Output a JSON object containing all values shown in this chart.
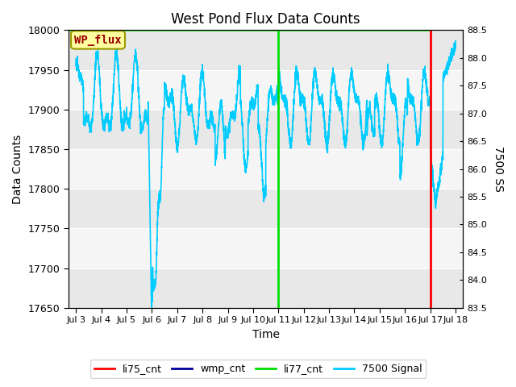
{
  "title": "West Pond Flux Data Counts",
  "xlabel": "Time",
  "ylabel_left": "Data Counts",
  "ylabel_right": "7500 SS",
  "ylim_left": [
    17650,
    18000
  ],
  "ylim_right": [
    83.5,
    88.5
  ],
  "background_color": "#ffffff",
  "plot_bg_color": "#d8d8d8",
  "annotation_label": "WP_flux",
  "annotation_box_color": "#ffffa0",
  "annotation_text_color": "#990000",
  "annotation_border_color": "#999900",
  "li77_cnt_x": 8.0,
  "li77_cnt_color": "#00dd00",
  "li75_cnt_x": 14.0,
  "li75_cnt_color": "#ff0000",
  "wmp_cnt_color": "#00dd00",
  "signal_color": "#00ccff",
  "signal_linewidth": 1.2,
  "xtick_labels": [
    "Jul 3",
    "Jul 4",
    "Jul 5",
    "Jul 6",
    "Jul 7",
    "Jul 8",
    "Jul 9",
    "Jul 10",
    "Jul 11",
    "Jul 12",
    "Jul 13",
    "Jul 14",
    "Jul 15",
    "Jul 16",
    "Jul 17",
    "Jul 18"
  ],
  "xtick_positions": [
    0,
    1,
    2,
    3,
    4,
    5,
    6,
    7,
    8,
    9,
    10,
    11,
    12,
    13,
    14,
    15
  ],
  "yticks_left": [
    17650,
    17700,
    17750,
    17800,
    17850,
    17900,
    17950,
    18000
  ],
  "yticks_right": [
    83.5,
    84.0,
    84.5,
    85.0,
    85.5,
    86.0,
    86.5,
    87.0,
    87.5,
    88.0,
    88.5
  ],
  "xlim": [
    -0.3,
    15.3
  ],
  "figsize": [
    6.4,
    4.8
  ],
  "dpi": 100
}
